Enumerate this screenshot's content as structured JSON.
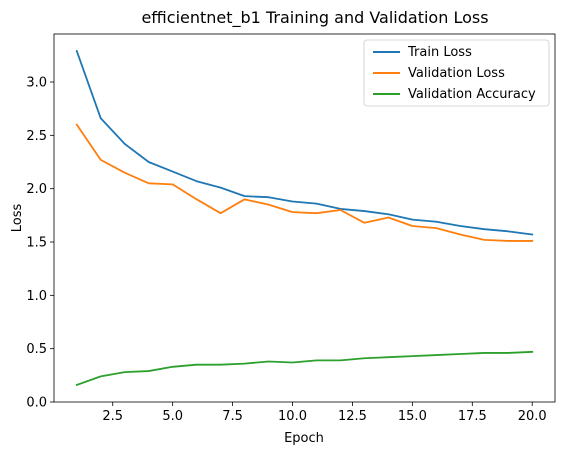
{
  "chart_data": {
    "type": "line",
    "title": "efficientnet_b1 Training and Validation Loss",
    "xlabel": "Epoch",
    "ylabel": "Loss",
    "xlim": [
      0.05,
      20.95
    ],
    "ylim": [
      0.0,
      3.45
    ],
    "xticks": [
      2.5,
      5.0,
      7.5,
      10.0,
      12.5,
      15.0,
      17.5,
      20.0
    ],
    "xtick_labels": [
      "2.5",
      "5.0",
      "7.5",
      "10.0",
      "12.5",
      "15.0",
      "17.5",
      "20.0"
    ],
    "yticks": [
      0.0,
      0.5,
      1.0,
      1.5,
      2.0,
      2.5,
      3.0
    ],
    "ytick_labels": [
      "0.0",
      "0.5",
      "1.0",
      "1.5",
      "2.0",
      "2.5",
      "3.0"
    ],
    "grid": false,
    "legend_position": "top-right",
    "x": [
      1,
      2,
      3,
      4,
      5,
      6,
      7,
      8,
      9,
      10,
      11,
      12,
      13,
      14,
      15,
      16,
      17,
      18,
      19,
      20
    ],
    "series": [
      {
        "name": "Train Loss",
        "color": "#1f77b4",
        "values": [
          3.29,
          2.66,
          2.42,
          2.25,
          2.16,
          2.07,
          2.01,
          1.93,
          1.92,
          1.88,
          1.86,
          1.81,
          1.79,
          1.76,
          1.71,
          1.69,
          1.65,
          1.62,
          1.6,
          1.57
        ]
      },
      {
        "name": "Validation Loss",
        "color": "#ff7f0e",
        "values": [
          2.6,
          2.27,
          2.15,
          2.05,
          2.04,
          1.9,
          1.77,
          1.9,
          1.85,
          1.78,
          1.77,
          1.8,
          1.68,
          1.73,
          1.65,
          1.63,
          1.57,
          1.52,
          1.51,
          1.51
        ]
      },
      {
        "name": "Validation Accuracy",
        "color": "#2ca02c",
        "values": [
          0.16,
          0.24,
          0.28,
          0.29,
          0.33,
          0.35,
          0.35,
          0.36,
          0.38,
          0.37,
          0.39,
          0.39,
          0.41,
          0.42,
          0.43,
          0.44,
          0.45,
          0.46,
          0.46,
          0.47
        ]
      }
    ]
  }
}
